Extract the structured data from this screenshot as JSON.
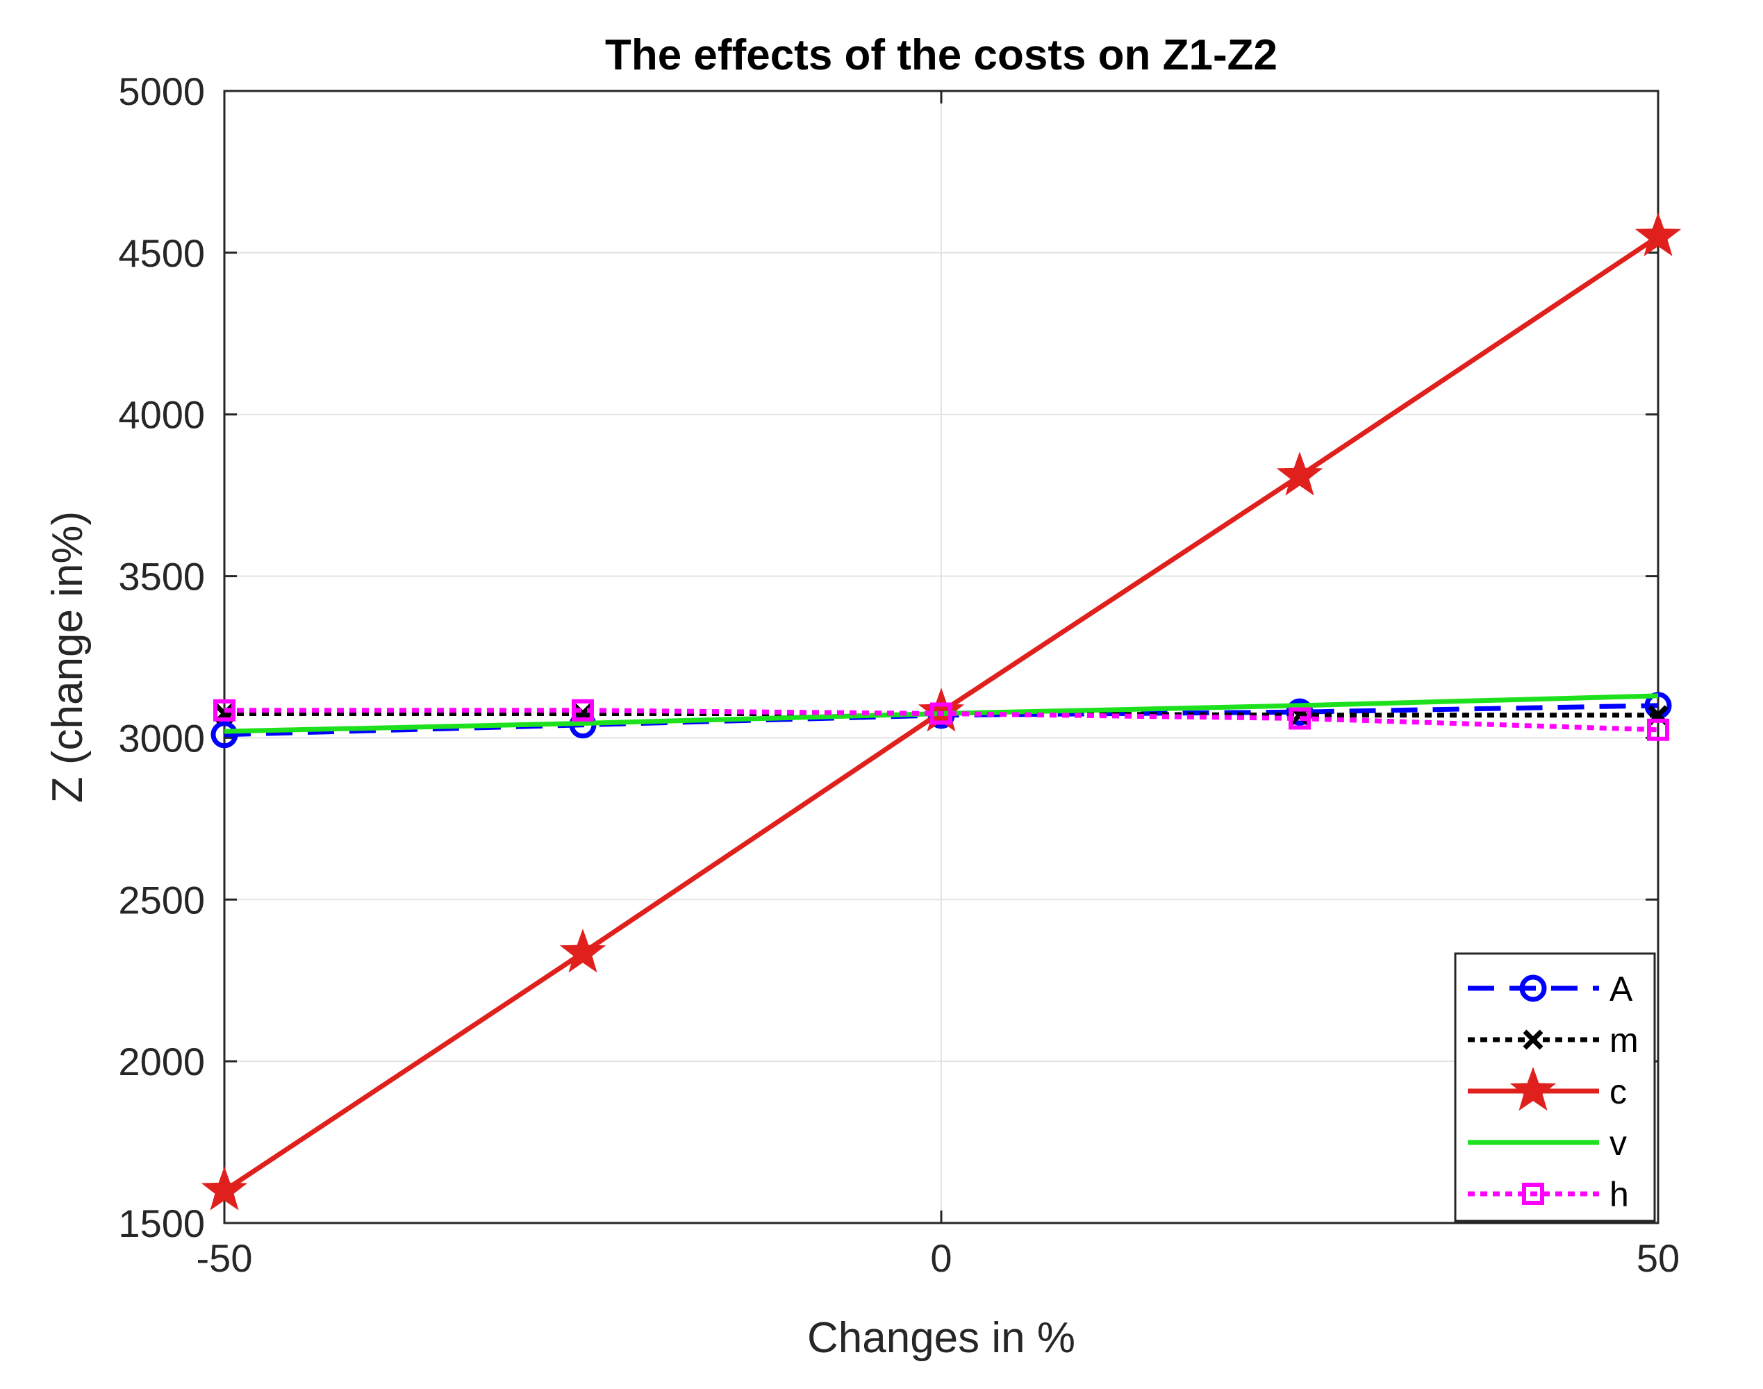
{
  "chart_data": {
    "type": "line",
    "title": "The effects of the costs on Z1-Z2",
    "xlabel": "Changes in %",
    "ylabel": "Z (change in%)",
    "xlim": [
      -50,
      50
    ],
    "ylim": [
      1500,
      5000
    ],
    "xticks": [
      -50,
      0,
      50
    ],
    "yticks": [
      1500,
      2000,
      2500,
      3000,
      3500,
      4000,
      4500,
      5000
    ],
    "grid": true,
    "legend_position": "bottom-right",
    "x": [
      -50,
      -25,
      0,
      25,
      50
    ],
    "series": [
      {
        "name": "A",
        "values": [
          3010,
          3040,
          3070,
          3080,
          3100
        ],
        "color": "#0000ff",
        "dash": "dashed",
        "marker": "circle"
      },
      {
        "name": "m",
        "values": [
          3075,
          3075,
          3075,
          3070,
          3070
        ],
        "color": "#000000",
        "dash": "dotted",
        "marker": "x"
      },
      {
        "name": "c",
        "values": [
          1600,
          2335,
          3080,
          3810,
          4550
        ],
        "color": "#e0201c",
        "dash": "solid",
        "marker": "star"
      },
      {
        "name": "v",
        "values": [
          3020,
          3045,
          3075,
          3100,
          3130
        ],
        "color": "#1ee11e",
        "dash": "solid",
        "marker": "none"
      },
      {
        "name": "h",
        "values": [
          3085,
          3085,
          3075,
          3060,
          3025
        ],
        "color": "#ff00ff",
        "dash": "dotted",
        "marker": "square"
      }
    ]
  }
}
